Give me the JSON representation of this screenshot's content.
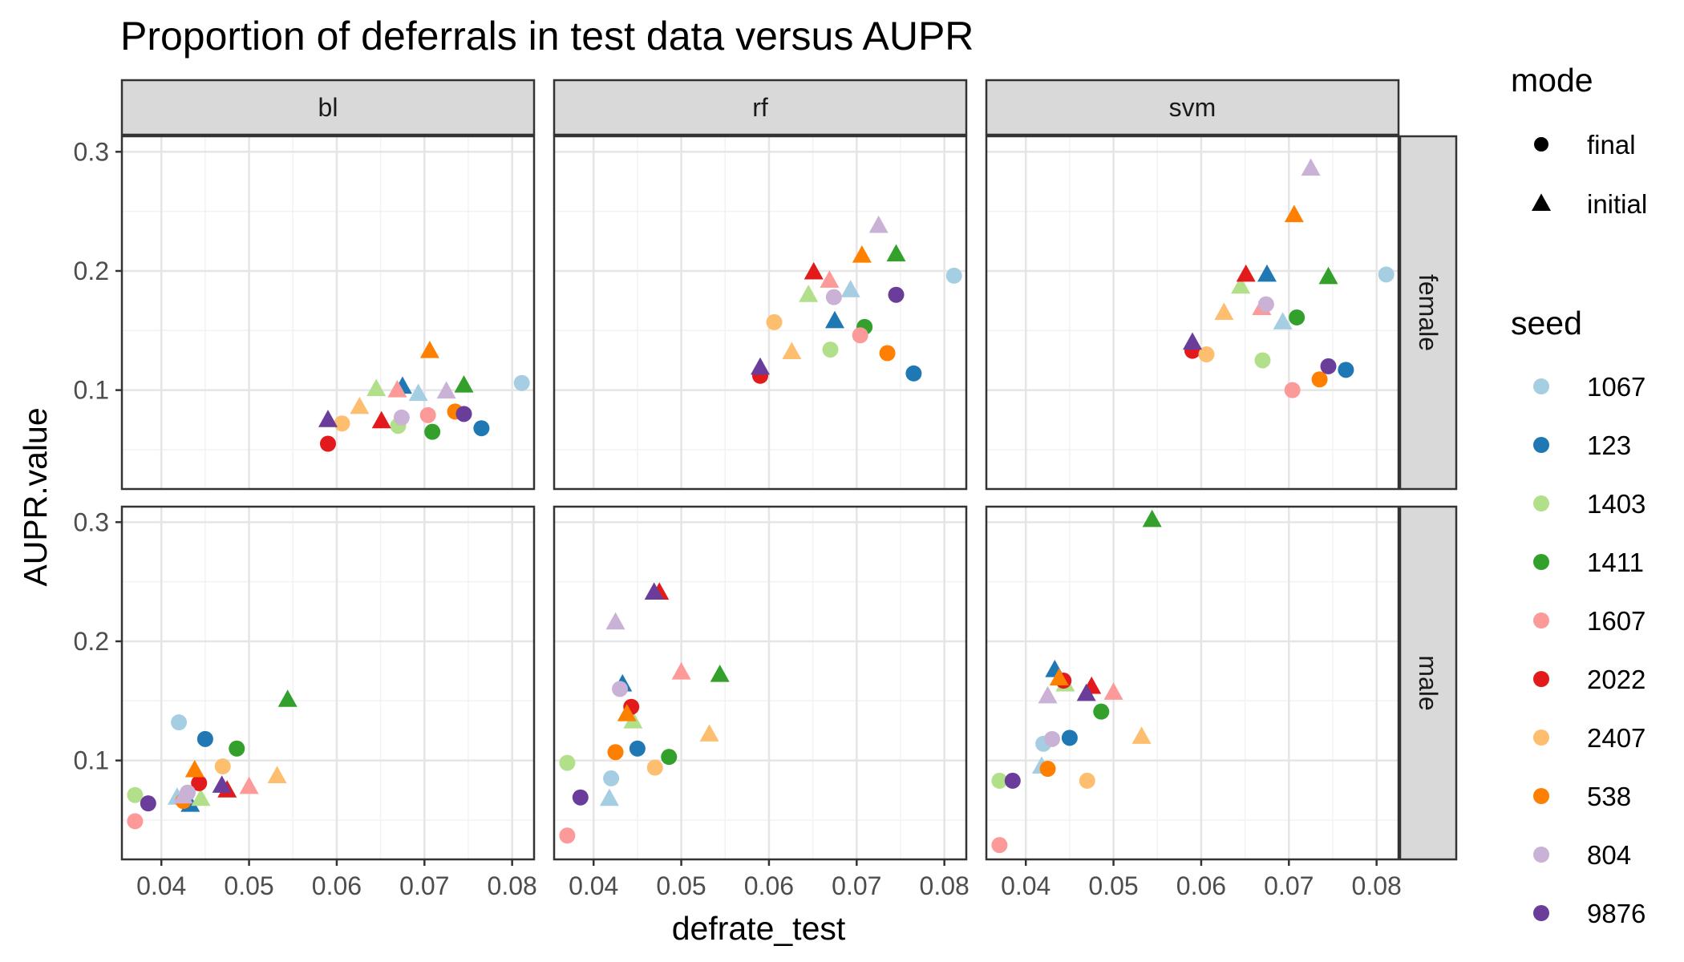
{
  "chart_data": {
    "type": "scatter",
    "title": "Proportion of deferrals in test data versus AUPR",
    "xlabel": "defrate_test",
    "ylabel": "AUPR.value",
    "xlim": [
      0.0355,
      0.0825
    ],
    "ylim": [
      0.017,
      0.313
    ],
    "x_ticks": [
      0.04,
      0.05,
      0.06,
      0.07,
      0.08
    ],
    "x_tick_labels": [
      "0.04",
      "0.05",
      "0.06",
      "0.07",
      "0.08"
    ],
    "y_ticks": [
      0.1,
      0.2,
      0.3
    ],
    "y_tick_labels": [
      "0.1",
      "0.2",
      "0.3"
    ],
    "grid": true,
    "facet_cols": [
      "bl",
      "rf",
      "svm"
    ],
    "facet_rows": [
      "female",
      "male"
    ],
    "legend_placement": "right",
    "shape_legend": {
      "title": "mode",
      "entries": [
        {
          "label": "final",
          "shape": "circle"
        },
        {
          "label": "initial",
          "shape": "triangle"
        }
      ]
    },
    "color_legend": {
      "title": "seed",
      "entries": [
        {
          "label": "1067",
          "color": "#A6CEE3"
        },
        {
          "label": "123",
          "color": "#1F78B4"
        },
        {
          "label": "1403",
          "color": "#B2DF8A"
        },
        {
          "label": "1411",
          "color": "#33A02C"
        },
        {
          "label": "1607",
          "color": "#FB9A99"
        },
        {
          "label": "2022",
          "color": "#E31A1C"
        },
        {
          "label": "2407",
          "color": "#FDBF6F"
        },
        {
          "label": "538",
          "color": "#FF7F00"
        },
        {
          "label": "804",
          "color": "#CAB2D6"
        },
        {
          "label": "9876",
          "color": "#6A3D9A"
        }
      ]
    },
    "panels": [
      {
        "col": "bl",
        "row": "female",
        "points": [
          {
            "seed": "1067",
            "mode": "final",
            "x": 0.0811,
            "y": 0.106
          },
          {
            "seed": "1067",
            "mode": "initial",
            "x": 0.0693,
            "y": 0.097
          },
          {
            "seed": "123",
            "mode": "final",
            "x": 0.0765,
            "y": 0.068
          },
          {
            "seed": "123",
            "mode": "initial",
            "x": 0.0675,
            "y": 0.103
          },
          {
            "seed": "1403",
            "mode": "final",
            "x": 0.067,
            "y": 0.07
          },
          {
            "seed": "1403",
            "mode": "initial",
            "x": 0.0645,
            "y": 0.101
          },
          {
            "seed": "1411",
            "mode": "final",
            "x": 0.0709,
            "y": 0.065
          },
          {
            "seed": "1411",
            "mode": "initial",
            "x": 0.0745,
            "y": 0.104
          },
          {
            "seed": "1607",
            "mode": "final",
            "x": 0.0704,
            "y": 0.079
          },
          {
            "seed": "1607",
            "mode": "initial",
            "x": 0.0669,
            "y": 0.1
          },
          {
            "seed": "2022",
            "mode": "final",
            "x": 0.059,
            "y": 0.055
          },
          {
            "seed": "2022",
            "mode": "initial",
            "x": 0.0651,
            "y": 0.074
          },
          {
            "seed": "2407",
            "mode": "final",
            "x": 0.0606,
            "y": 0.072
          },
          {
            "seed": "2407",
            "mode": "initial",
            "x": 0.0626,
            "y": 0.086
          },
          {
            "seed": "538",
            "mode": "final",
            "x": 0.0735,
            "y": 0.082
          },
          {
            "seed": "538",
            "mode": "initial",
            "x": 0.0706,
            "y": 0.133
          },
          {
            "seed": "804",
            "mode": "final",
            "x": 0.0674,
            "y": 0.077
          },
          {
            "seed": "804",
            "mode": "initial",
            "x": 0.0725,
            "y": 0.099
          },
          {
            "seed": "9876",
            "mode": "final",
            "x": 0.0745,
            "y": 0.08
          },
          {
            "seed": "9876",
            "mode": "initial",
            "x": 0.059,
            "y": 0.075
          }
        ]
      },
      {
        "col": "rf",
        "row": "female",
        "points": [
          {
            "seed": "1067",
            "mode": "final",
            "x": 0.0811,
            "y": 0.196
          },
          {
            "seed": "1067",
            "mode": "initial",
            "x": 0.0693,
            "y": 0.184
          },
          {
            "seed": "123",
            "mode": "final",
            "x": 0.0765,
            "y": 0.114
          },
          {
            "seed": "123",
            "mode": "initial",
            "x": 0.0675,
            "y": 0.158
          },
          {
            "seed": "1403",
            "mode": "final",
            "x": 0.067,
            "y": 0.134
          },
          {
            "seed": "1403",
            "mode": "initial",
            "x": 0.0645,
            "y": 0.18
          },
          {
            "seed": "1411",
            "mode": "final",
            "x": 0.0709,
            "y": 0.153
          },
          {
            "seed": "1411",
            "mode": "initial",
            "x": 0.0745,
            "y": 0.214
          },
          {
            "seed": "1607",
            "mode": "final",
            "x": 0.0704,
            "y": 0.146
          },
          {
            "seed": "1607",
            "mode": "initial",
            "x": 0.0669,
            "y": 0.192
          },
          {
            "seed": "2022",
            "mode": "final",
            "x": 0.059,
            "y": 0.112
          },
          {
            "seed": "2022",
            "mode": "initial",
            "x": 0.0651,
            "y": 0.199
          },
          {
            "seed": "2407",
            "mode": "final",
            "x": 0.0606,
            "y": 0.157
          },
          {
            "seed": "2407",
            "mode": "initial",
            "x": 0.0626,
            "y": 0.132
          },
          {
            "seed": "538",
            "mode": "final",
            "x": 0.0735,
            "y": 0.131
          },
          {
            "seed": "538",
            "mode": "initial",
            "x": 0.0706,
            "y": 0.213
          },
          {
            "seed": "804",
            "mode": "final",
            "x": 0.0674,
            "y": 0.178
          },
          {
            "seed": "804",
            "mode": "initial",
            "x": 0.0725,
            "y": 0.238
          },
          {
            "seed": "9876",
            "mode": "final",
            "x": 0.0745,
            "y": 0.18
          },
          {
            "seed": "9876",
            "mode": "initial",
            "x": 0.059,
            "y": 0.119
          }
        ]
      },
      {
        "col": "svm",
        "row": "female",
        "points": [
          {
            "seed": "1067",
            "mode": "final",
            "x": 0.0811,
            "y": 0.197
          },
          {
            "seed": "1067",
            "mode": "initial",
            "x": 0.0693,
            "y": 0.157
          },
          {
            "seed": "123",
            "mode": "final",
            "x": 0.0765,
            "y": 0.117
          },
          {
            "seed": "123",
            "mode": "initial",
            "x": 0.0675,
            "y": 0.197
          },
          {
            "seed": "1403",
            "mode": "final",
            "x": 0.067,
            "y": 0.125
          },
          {
            "seed": "1403",
            "mode": "initial",
            "x": 0.0645,
            "y": 0.187
          },
          {
            "seed": "1411",
            "mode": "final",
            "x": 0.0709,
            "y": 0.161
          },
          {
            "seed": "1411",
            "mode": "initial",
            "x": 0.0745,
            "y": 0.195
          },
          {
            "seed": "1607",
            "mode": "final",
            "x": 0.0704,
            "y": 0.1
          },
          {
            "seed": "1607",
            "mode": "initial",
            "x": 0.0669,
            "y": 0.169
          },
          {
            "seed": "2022",
            "mode": "final",
            "x": 0.059,
            "y": 0.133
          },
          {
            "seed": "2022",
            "mode": "initial",
            "x": 0.0651,
            "y": 0.197
          },
          {
            "seed": "2407",
            "mode": "final",
            "x": 0.0606,
            "y": 0.13
          },
          {
            "seed": "2407",
            "mode": "initial",
            "x": 0.0626,
            "y": 0.165
          },
          {
            "seed": "538",
            "mode": "final",
            "x": 0.0735,
            "y": 0.109
          },
          {
            "seed": "538",
            "mode": "initial",
            "x": 0.0706,
            "y": 0.247
          },
          {
            "seed": "804",
            "mode": "final",
            "x": 0.0674,
            "y": 0.172
          },
          {
            "seed": "804",
            "mode": "initial",
            "x": 0.0725,
            "y": 0.286
          },
          {
            "seed": "9876",
            "mode": "final",
            "x": 0.0745,
            "y": 0.12
          },
          {
            "seed": "9876",
            "mode": "initial",
            "x": 0.059,
            "y": 0.14
          }
        ]
      },
      {
        "col": "bl",
        "row": "male",
        "points": [
          {
            "seed": "1067",
            "mode": "final",
            "x": 0.042,
            "y": 0.132
          },
          {
            "seed": "1067",
            "mode": "initial",
            "x": 0.0418,
            "y": 0.069
          },
          {
            "seed": "123",
            "mode": "final",
            "x": 0.045,
            "y": 0.118
          },
          {
            "seed": "123",
            "mode": "initial",
            "x": 0.0433,
            "y": 0.063
          },
          {
            "seed": "1403",
            "mode": "final",
            "x": 0.037,
            "y": 0.071
          },
          {
            "seed": "1403",
            "mode": "initial",
            "x": 0.0445,
            "y": 0.068
          },
          {
            "seed": "1411",
            "mode": "final",
            "x": 0.0486,
            "y": 0.11
          },
          {
            "seed": "1411",
            "mode": "initial",
            "x": 0.0544,
            "y": 0.151
          },
          {
            "seed": "1607",
            "mode": "final",
            "x": 0.037,
            "y": 0.049
          },
          {
            "seed": "1607",
            "mode": "initial",
            "x": 0.05,
            "y": 0.078
          },
          {
            "seed": "2022",
            "mode": "final",
            "x": 0.0443,
            "y": 0.081
          },
          {
            "seed": "2022",
            "mode": "initial",
            "x": 0.0475,
            "y": 0.075
          },
          {
            "seed": "2407",
            "mode": "final",
            "x": 0.047,
            "y": 0.095
          },
          {
            "seed": "2407",
            "mode": "initial",
            "x": 0.0532,
            "y": 0.087
          },
          {
            "seed": "538",
            "mode": "final",
            "x": 0.0425,
            "y": 0.066
          },
          {
            "seed": "538",
            "mode": "initial",
            "x": 0.0438,
            "y": 0.092
          },
          {
            "seed": "804",
            "mode": "final",
            "x": 0.043,
            "y": 0.073
          },
          {
            "seed": "804",
            "mode": "initial",
            "x": 0.0425,
            "y": 0.07
          },
          {
            "seed": "9876",
            "mode": "final",
            "x": 0.0385,
            "y": 0.064
          },
          {
            "seed": "9876",
            "mode": "initial",
            "x": 0.0469,
            "y": 0.079
          }
        ]
      },
      {
        "col": "rf",
        "row": "male",
        "points": [
          {
            "seed": "1067",
            "mode": "final",
            "x": 0.042,
            "y": 0.085
          },
          {
            "seed": "1067",
            "mode": "initial",
            "x": 0.0418,
            "y": 0.068
          },
          {
            "seed": "123",
            "mode": "final",
            "x": 0.045,
            "y": 0.11
          },
          {
            "seed": "123",
            "mode": "initial",
            "x": 0.0433,
            "y": 0.164
          },
          {
            "seed": "1403",
            "mode": "final",
            "x": 0.037,
            "y": 0.098
          },
          {
            "seed": "1403",
            "mode": "initial",
            "x": 0.0445,
            "y": 0.133
          },
          {
            "seed": "1411",
            "mode": "final",
            "x": 0.0486,
            "y": 0.103
          },
          {
            "seed": "1411",
            "mode": "initial",
            "x": 0.0544,
            "y": 0.172
          },
          {
            "seed": "1607",
            "mode": "final",
            "x": 0.037,
            "y": 0.037
          },
          {
            "seed": "1607",
            "mode": "initial",
            "x": 0.05,
            "y": 0.174
          },
          {
            "seed": "2022",
            "mode": "final",
            "x": 0.0443,
            "y": 0.145
          },
          {
            "seed": "2022",
            "mode": "initial",
            "x": 0.0475,
            "y": 0.241
          },
          {
            "seed": "2407",
            "mode": "final",
            "x": 0.047,
            "y": 0.094
          },
          {
            "seed": "2407",
            "mode": "initial",
            "x": 0.0532,
            "y": 0.122
          },
          {
            "seed": "538",
            "mode": "final",
            "x": 0.0425,
            "y": 0.107
          },
          {
            "seed": "538",
            "mode": "initial",
            "x": 0.0438,
            "y": 0.139
          },
          {
            "seed": "804",
            "mode": "final",
            "x": 0.043,
            "y": 0.16
          },
          {
            "seed": "804",
            "mode": "initial",
            "x": 0.0425,
            "y": 0.216
          },
          {
            "seed": "9876",
            "mode": "final",
            "x": 0.0385,
            "y": 0.069
          },
          {
            "seed": "9876",
            "mode": "initial",
            "x": 0.0469,
            "y": 0.241
          }
        ]
      },
      {
        "col": "svm",
        "row": "male",
        "points": [
          {
            "seed": "1067",
            "mode": "final",
            "x": 0.042,
            "y": 0.114
          },
          {
            "seed": "1067",
            "mode": "initial",
            "x": 0.0418,
            "y": 0.095
          },
          {
            "seed": "123",
            "mode": "final",
            "x": 0.045,
            "y": 0.119
          },
          {
            "seed": "123",
            "mode": "initial",
            "x": 0.0433,
            "y": 0.176
          },
          {
            "seed": "1403",
            "mode": "final",
            "x": 0.037,
            "y": 0.083
          },
          {
            "seed": "1403",
            "mode": "initial",
            "x": 0.0445,
            "y": 0.164
          },
          {
            "seed": "1411",
            "mode": "final",
            "x": 0.0486,
            "y": 0.141
          },
          {
            "seed": "1411",
            "mode": "initial",
            "x": 0.0544,
            "y": 0.302
          },
          {
            "seed": "1607",
            "mode": "final",
            "x": 0.037,
            "y": 0.029
          },
          {
            "seed": "1607",
            "mode": "initial",
            "x": 0.05,
            "y": 0.157
          },
          {
            "seed": "2022",
            "mode": "final",
            "x": 0.0443,
            "y": 0.167
          },
          {
            "seed": "2022",
            "mode": "initial",
            "x": 0.0475,
            "y": 0.162
          },
          {
            "seed": "2407",
            "mode": "final",
            "x": 0.047,
            "y": 0.083
          },
          {
            "seed": "2407",
            "mode": "initial",
            "x": 0.0532,
            "y": 0.12
          },
          {
            "seed": "538",
            "mode": "final",
            "x": 0.0425,
            "y": 0.093
          },
          {
            "seed": "538",
            "mode": "initial",
            "x": 0.0438,
            "y": 0.169
          },
          {
            "seed": "804",
            "mode": "final",
            "x": 0.043,
            "y": 0.118
          },
          {
            "seed": "804",
            "mode": "initial",
            "x": 0.0425,
            "y": 0.154
          },
          {
            "seed": "9876",
            "mode": "final",
            "x": 0.0385,
            "y": 0.083
          },
          {
            "seed": "9876",
            "mode": "initial",
            "x": 0.0469,
            "y": 0.156
          }
        ]
      }
    ]
  }
}
